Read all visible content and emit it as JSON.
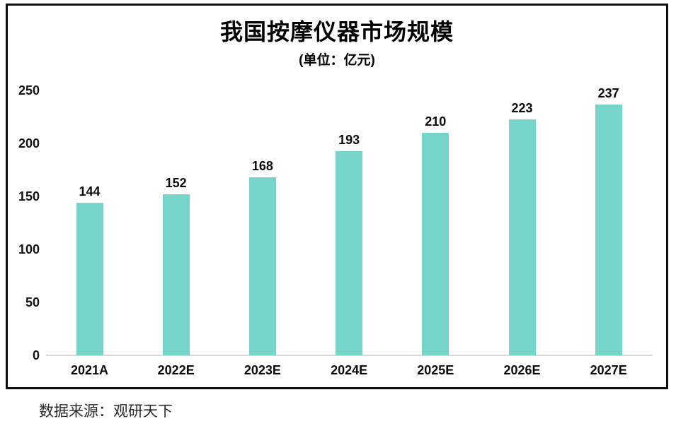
{
  "chart_data": {
    "type": "bar",
    "title": "我国按摩仪器市场规模",
    "subtitle": "(单位：亿元)",
    "categories": [
      "2021A",
      "2022E",
      "2023E",
      "2024E",
      "2025E",
      "2026E",
      "2027E"
    ],
    "values": [
      144,
      152,
      168,
      193,
      210,
      223,
      237
    ],
    "y_ticks": [
      0,
      50,
      100,
      150,
      200,
      250
    ],
    "ylim": [
      0,
      250
    ],
    "xlabel": "",
    "ylabel": "",
    "grid": false,
    "legend": "none",
    "bar_color": "#76d4c8",
    "axis_line_color": "#d8d8d8",
    "frame_color": "#0f0f0f"
  },
  "source": {
    "label": "数据来源：观研天下"
  }
}
